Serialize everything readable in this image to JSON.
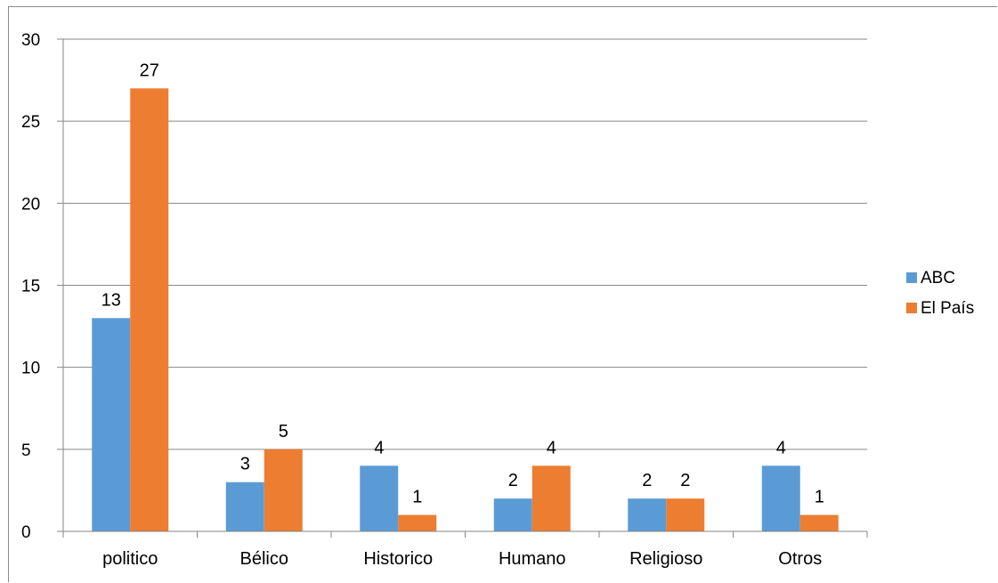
{
  "chart_data": {
    "type": "bar",
    "categories": [
      "politico",
      "Bélico",
      "Historico",
      "Humano",
      "Religioso",
      "Otros"
    ],
    "series": [
      {
        "name": "ABC",
        "values": [
          13,
          3,
          4,
          2,
          2,
          4
        ],
        "color": "#5b9bd5"
      },
      {
        "name": "El País",
        "values": [
          27,
          5,
          1,
          4,
          2,
          1
        ],
        "color": "#ed7d31"
      }
    ],
    "ylim": [
      0,
      30
    ],
    "yticks": [
      0,
      5,
      10,
      15,
      20,
      25,
      30
    ],
    "grid": true,
    "data_labels": true,
    "legend_position": "right",
    "title": "",
    "xlabel": "",
    "ylabel": ""
  }
}
